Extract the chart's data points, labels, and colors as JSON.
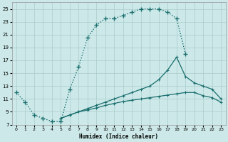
{
  "xlabel": "Humidex (Indice chaleur)",
  "bg_color": "#cce8e8",
  "grid_color": "#aacccc",
  "line_color": "#1a6e6e",
  "xlim": [
    -0.5,
    23.5
  ],
  "ylim": [
    7,
    26
  ],
  "xticks": [
    0,
    1,
    2,
    3,
    4,
    5,
    6,
    7,
    8,
    9,
    10,
    11,
    12,
    13,
    14,
    15,
    16,
    17,
    18,
    19,
    20,
    21,
    22,
    23
  ],
  "yticks": [
    7,
    9,
    11,
    13,
    15,
    17,
    19,
    21,
    23,
    25
  ],
  "curve1_x": [
    0,
    1,
    2,
    3,
    4,
    5,
    6,
    7,
    8,
    9,
    10,
    11,
    12,
    13,
    14,
    15,
    16,
    17,
    18,
    19
  ],
  "curve1_y": [
    12,
    10.5,
    8.5,
    8.0,
    7.5,
    7.5,
    12.5,
    16.0,
    20.5,
    22.5,
    23.5,
    23.5,
    24.0,
    24.5,
    25.0,
    25.0,
    25.0,
    24.5,
    23.5,
    18.0
  ],
  "curve2_x": [
    5,
    6,
    7,
    8,
    9,
    10,
    11,
    12,
    13,
    14,
    15,
    16,
    17,
    18,
    19,
    20,
    21,
    22,
    23
  ],
  "curve2_y": [
    8.0,
    8.5,
    9.0,
    9.5,
    10.0,
    10.5,
    11.0,
    11.5,
    12.0,
    12.5,
    13.0,
    14.0,
    15.5,
    17.5,
    14.5,
    13.5,
    13.0,
    12.5,
    11.0
  ],
  "curve3_x": [
    5,
    6,
    7,
    8,
    9,
    10,
    11,
    12,
    13,
    14,
    15,
    16,
    17,
    18,
    19,
    20,
    21,
    22,
    23
  ],
  "curve3_y": [
    8.0,
    8.5,
    9.0,
    9.3,
    9.6,
    10.0,
    10.3,
    10.6,
    10.8,
    11.0,
    11.2,
    11.4,
    11.6,
    11.8,
    12.0,
    12.0,
    11.5,
    11.2,
    10.5
  ]
}
